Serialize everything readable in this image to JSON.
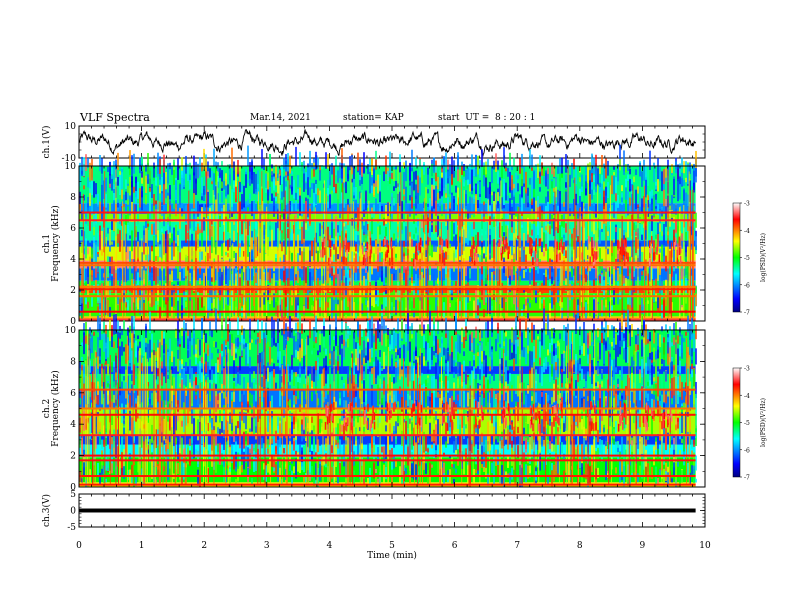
{
  "header": {
    "title": "VLF Spectra",
    "date": "Mar.14, 2021",
    "station": "station= KAP",
    "start": "start  UT =  8 : 20 : 1"
  },
  "chart_data": [
    {
      "type": "line",
      "panel": "ch1-waveform",
      "ylabel": "ch.1(V)",
      "ylim": [
        -10,
        10
      ],
      "yticks": [
        10,
        -10
      ],
      "xlim": [
        0,
        10
      ],
      "series_description_values": {
        "baseline": 0,
        "typical_amplitude": 5,
        "end_x": 9.85
      }
    },
    {
      "type": "heatmap",
      "panel": "ch1-spectrogram",
      "ylabel": "ch.1\nFrequency (kHz)",
      "ylim": [
        0,
        10
      ],
      "yticks": [
        0,
        2,
        4,
        6,
        8,
        10
      ],
      "xlim": [
        0,
        10
      ],
      "data_end_x": 9.85,
      "colorbar": {
        "label": "log(PSD)(V²/Hz)",
        "range": [
          -7,
          -3
        ],
        "ticks": [
          -3,
          -4,
          -5,
          -6,
          -7
        ]
      },
      "bands": [
        {
          "fmin": 0.0,
          "fmax": 0.3,
          "level": -4.2
        },
        {
          "fmin": 0.3,
          "fmax": 1.8,
          "level": -4.9
        },
        {
          "fmin": 1.8,
          "fmax": 2.3,
          "level": -3.8
        },
        {
          "fmin": 2.3,
          "fmax": 2.6,
          "level": -5.2
        },
        {
          "fmin": 2.6,
          "fmax": 3.4,
          "level": -6.1
        },
        {
          "fmin": 3.4,
          "fmax": 3.9,
          "level": -3.3
        },
        {
          "fmin": 3.9,
          "fmax": 4.8,
          "level": -4.5
        },
        {
          "fmin": 4.8,
          "fmax": 5.2,
          "level": -6.2
        },
        {
          "fmin": 5.2,
          "fmax": 6.4,
          "level": -5.4
        },
        {
          "fmin": 6.4,
          "fmax": 6.9,
          "level": -4.7
        },
        {
          "fmin": 6.9,
          "fmax": 7.6,
          "level": -6.0
        },
        {
          "fmin": 7.6,
          "fmax": 10.0,
          "level": -5.3
        }
      ],
      "lines_khz": [
        0.1,
        0.6,
        1.6,
        2.05,
        2.2,
        3.6,
        3.75,
        6.5,
        7.0
      ],
      "bursts_min": [
        3.85,
        4.15,
        4.5,
        4.85,
        5.3,
        5.75,
        6.2,
        6.7,
        7.2,
        7.6,
        8.1,
        8.6,
        9.1,
        9.45
      ]
    },
    {
      "type": "heatmap",
      "panel": "ch2-spectrogram",
      "ylabel": "ch.2\nFrequency (kHz)",
      "ylim": [
        0,
        10
      ],
      "yticks": [
        0,
        2,
        4,
        6,
        8,
        10
      ],
      "xlim": [
        0,
        10
      ],
      "data_end_x": 9.85,
      "colorbar": {
        "label": "log(PSD)(V²/Hz)",
        "range": [
          -7,
          -3
        ],
        "ticks": [
          -3,
          -4,
          -5,
          -6,
          -7
        ]
      },
      "bands": [
        {
          "fmin": 0.0,
          "fmax": 0.3,
          "level": -4.3
        },
        {
          "fmin": 0.3,
          "fmax": 1.9,
          "level": -5.0
        },
        {
          "fmin": 1.9,
          "fmax": 2.7,
          "level": -5.6
        },
        {
          "fmin": 2.7,
          "fmax": 3.3,
          "level": -6.3
        },
        {
          "fmin": 3.3,
          "fmax": 5.0,
          "level": -4.6
        },
        {
          "fmin": 5.0,
          "fmax": 6.2,
          "level": -6.1
        },
        {
          "fmin": 6.2,
          "fmax": 7.2,
          "level": -5.3
        },
        {
          "fmin": 7.2,
          "fmax": 7.7,
          "level": -6.3
        },
        {
          "fmin": 7.7,
          "fmax": 10.0,
          "level": -5.2
        }
      ],
      "lines_khz": [
        0.15,
        0.7,
        1.7,
        2.0,
        3.3,
        4.6,
        5.0,
        6.2
      ],
      "bursts_min": [
        3.9,
        4.2,
        4.55,
        4.9,
        5.3,
        5.8,
        6.3,
        6.75,
        7.2,
        7.55,
        8.1,
        8.6,
        9.0,
        9.3
      ]
    },
    {
      "type": "line",
      "panel": "ch3-waveform",
      "ylabel": "ch.3(V)",
      "ylim": [
        -5,
        5
      ],
      "yticks": [
        5,
        0,
        -5
      ],
      "xlim": [
        0,
        10
      ],
      "xticks": [
        0,
        1,
        2,
        3,
        4,
        5,
        6,
        7,
        8,
        9,
        10
      ],
      "xlabel": "Time (min)",
      "series_description_values": {
        "baseline": 0,
        "band_halfwidth": 0.6,
        "end_x": 9.85
      }
    }
  ]
}
